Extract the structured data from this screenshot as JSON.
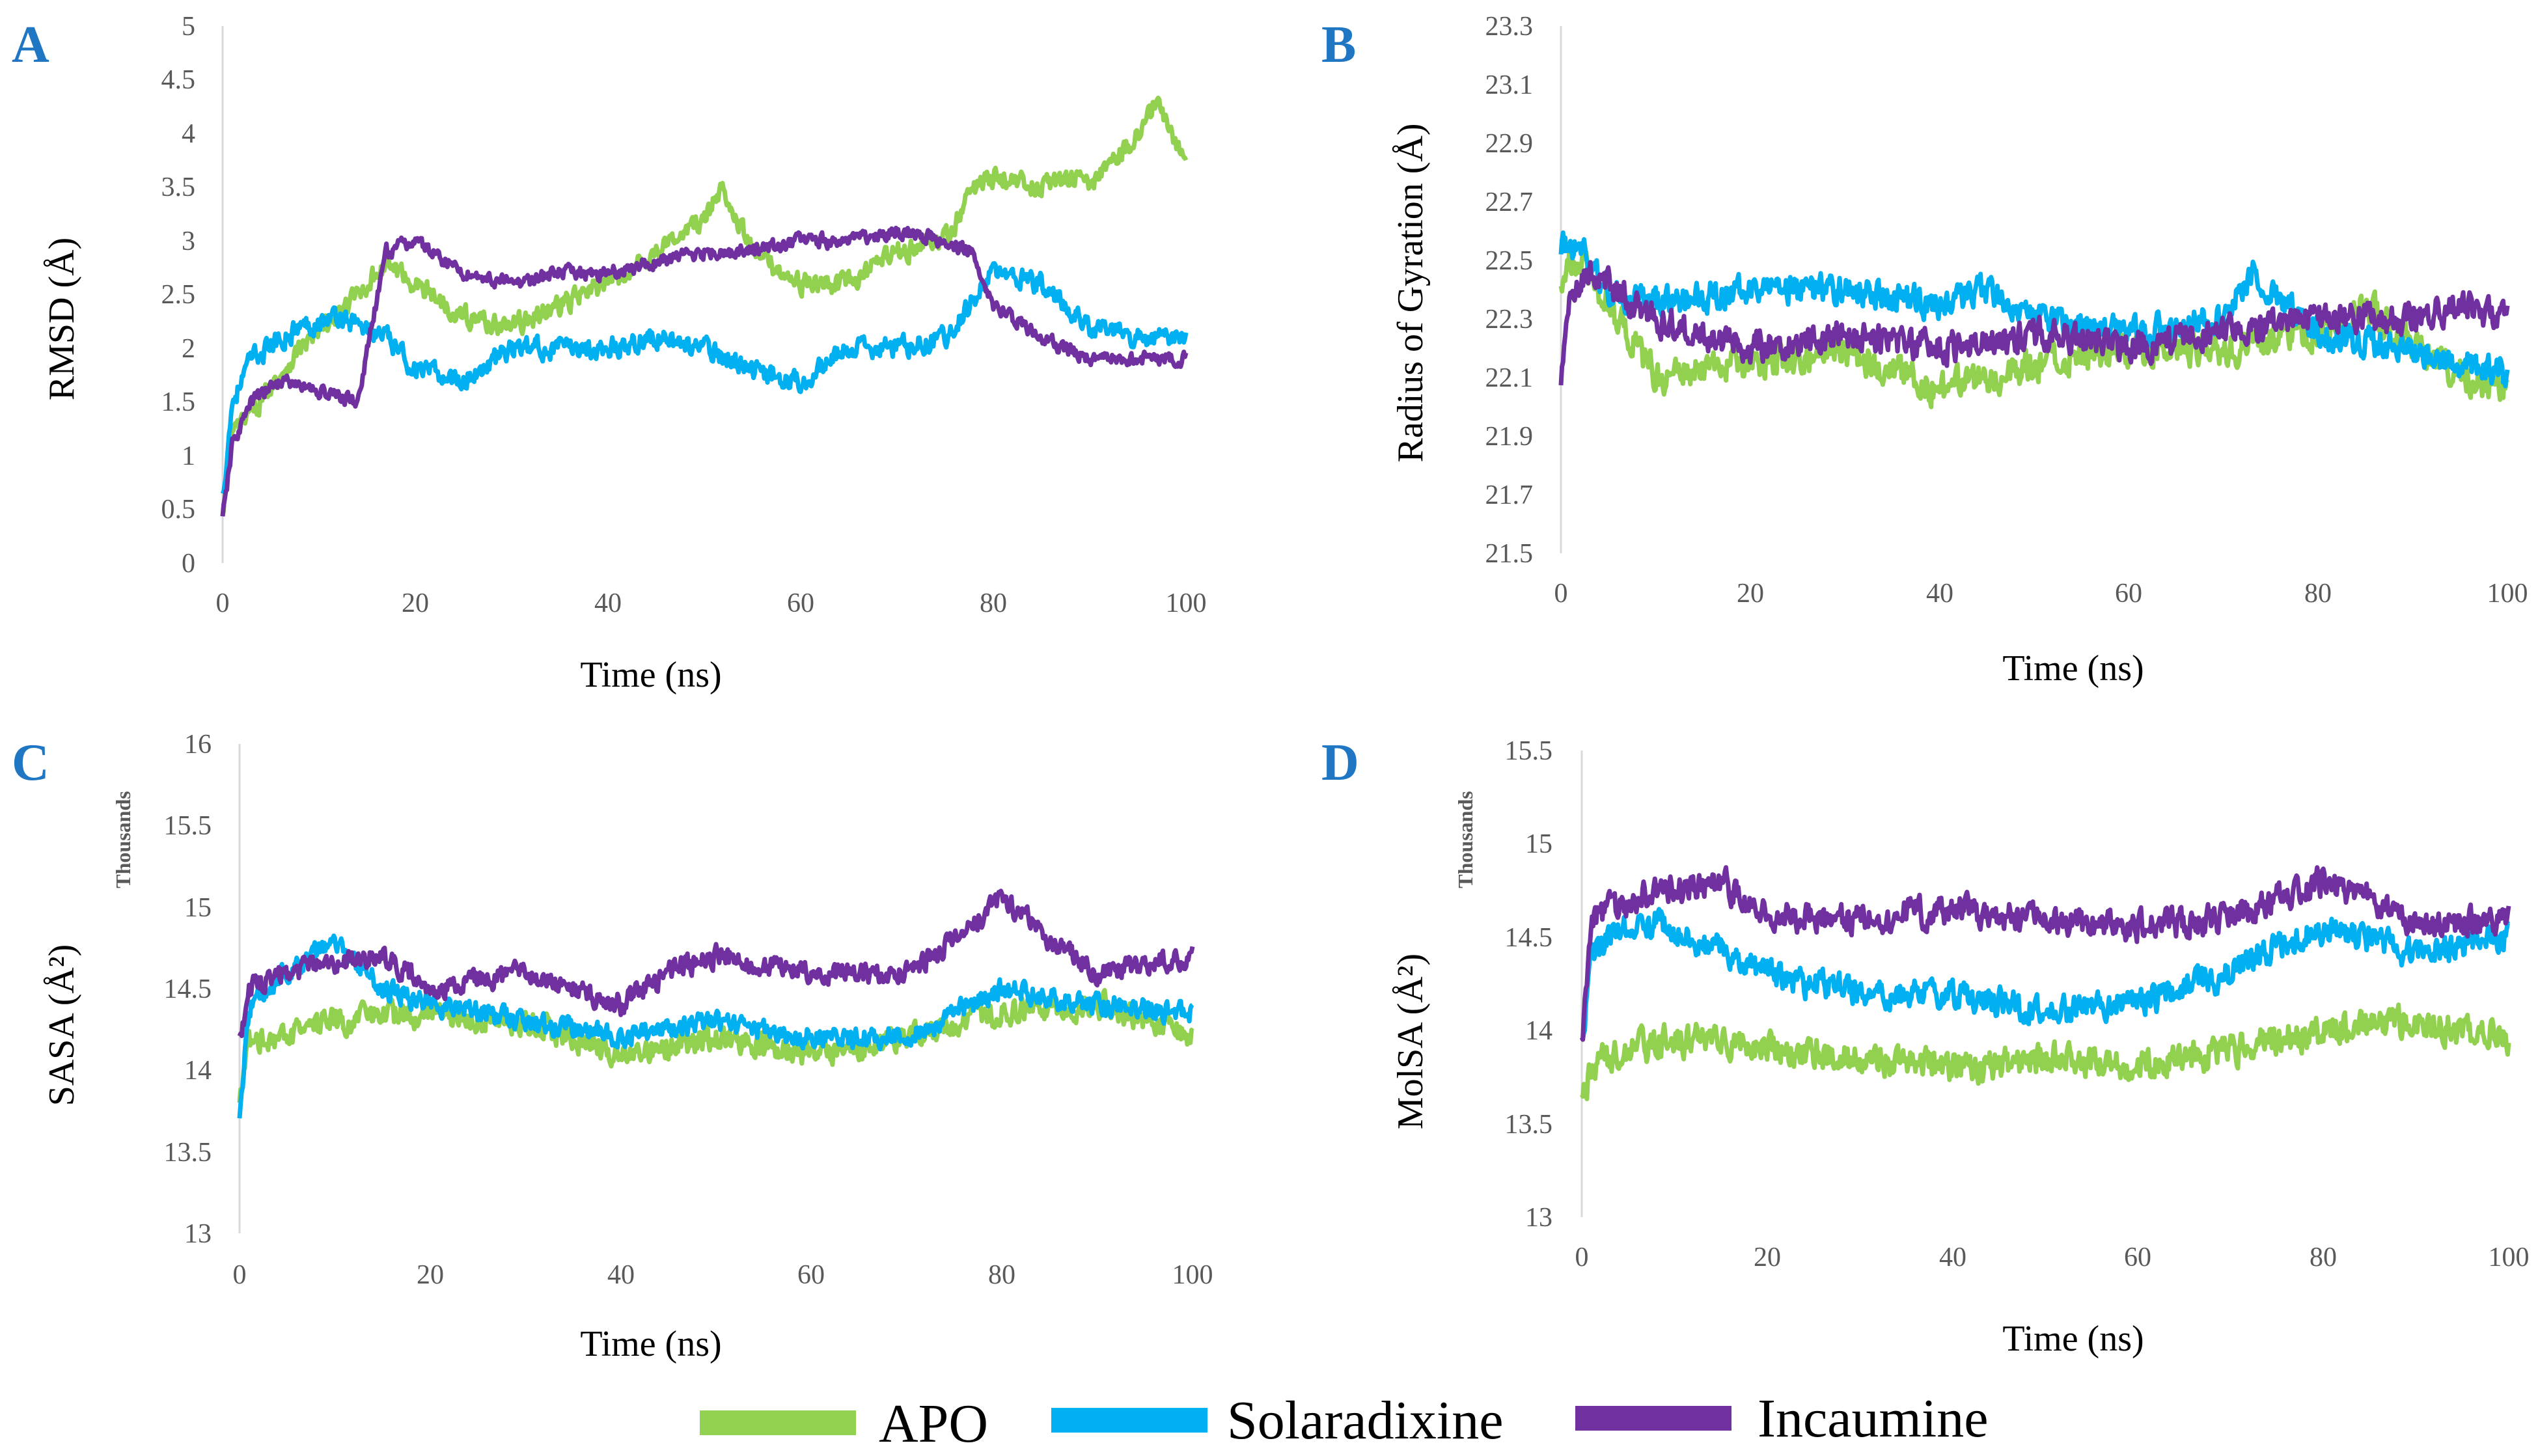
{
  "legend": {
    "items": [
      {
        "label": "APO",
        "color": "#92d050"
      },
      {
        "label": "Solaradixine",
        "color": "#00b0f0"
      },
      {
        "label": "Incaumine",
        "color": "#7030a0"
      }
    ]
  },
  "chart_data": [
    {
      "panel": "A",
      "type": "line",
      "xlabel": "Time (ns)",
      "ylabel": "RMSD (Å)",
      "units_label": "",
      "xlim": [
        0,
        100
      ],
      "ylim": [
        0,
        5
      ],
      "xticks": [
        "0",
        "20",
        "40",
        "60",
        "80",
        "100"
      ],
      "yticks": [
        "0",
        "0.5",
        "1",
        "1.5",
        "2",
        "2.5",
        "3",
        "3.5",
        "4",
        "4.5",
        "5"
      ],
      "series": [
        {
          "name": "APO",
          "color": "#92d050",
          "noise": 0.15,
          "x": [
            0,
            1,
            3,
            8,
            12,
            17,
            20,
            25,
            30,
            40,
            45,
            50,
            52,
            55,
            60,
            65,
            70,
            75,
            78,
            80,
            85,
            88,
            90,
            95,
            97,
            100
          ],
          "y": [
            0.4,
            1.2,
            1.4,
            2.0,
            2.3,
            2.8,
            2.6,
            2.3,
            2.2,
            2.6,
            2.9,
            3.2,
            3.5,
            2.9,
            2.6,
            2.6,
            2.9,
            3.0,
            3.5,
            3.6,
            3.5,
            3.6,
            3.5,
            4.0,
            4.3,
            3.7
          ]
        },
        {
          "name": "Solaradixine",
          "color": "#00b0f0",
          "noise": 0.15,
          "x": [
            0,
            1,
            3,
            8,
            12,
            17,
            20,
            25,
            30,
            40,
            45,
            50,
            55,
            60,
            65,
            70,
            75,
            80,
            85,
            90,
            95,
            100
          ],
          "y": [
            0.6,
            1.5,
            1.9,
            2.2,
            2.3,
            2.1,
            1.8,
            1.7,
            2.0,
            2.0,
            2.1,
            2.0,
            1.8,
            1.7,
            2.0,
            2.0,
            2.1,
            2.7,
            2.6,
            2.2,
            2.1,
            2.1
          ]
        },
        {
          "name": "Incaumine",
          "color": "#7030a0",
          "noise": 0.1,
          "x": [
            0,
            1,
            3,
            6,
            10,
            14,
            17,
            20,
            25,
            30,
            35,
            40,
            45,
            50,
            55,
            60,
            65,
            70,
            75,
            78,
            80,
            85,
            90,
            95,
            100
          ],
          "y": [
            0.4,
            1.1,
            1.5,
            1.7,
            1.6,
            1.5,
            2.9,
            3.0,
            2.7,
            2.6,
            2.7,
            2.7,
            2.8,
            2.9,
            2.9,
            3.0,
            3.0,
            3.1,
            3.0,
            2.9,
            2.4,
            2.1,
            1.9,
            1.9,
            1.9
          ]
        }
      ]
    },
    {
      "panel": "B",
      "type": "line",
      "xlabel": "Time (ns)",
      "ylabel": "Radius of Gyration (Å)",
      "units_label": "",
      "xlim": [
        0,
        100
      ],
      "ylim": [
        21.5,
        23.3
      ],
      "xticks": [
        "0",
        "20",
        "40",
        "60",
        "80",
        "100"
      ],
      "yticks": [
        "21.5",
        "21.7",
        "21.9",
        "22.1",
        "22.3",
        "22.5",
        "22.7",
        "22.9",
        "23.1",
        "23.3"
      ],
      "series": [
        {
          "name": "APO",
          "color": "#92d050",
          "noise": 0.09,
          "x": [
            0,
            2,
            5,
            10,
            20,
            30,
            40,
            50,
            60,
            70,
            80,
            85,
            90,
            100
          ],
          "y": [
            22.45,
            22.5,
            22.35,
            22.1,
            22.15,
            22.2,
            22.05,
            22.15,
            22.2,
            22.2,
            22.25,
            22.35,
            22.2,
            22.05
          ]
        },
        {
          "name": "Solaradixine",
          "color": "#00b0f0",
          "noise": 0.08,
          "x": [
            0,
            2,
            5,
            10,
            20,
            30,
            40,
            45,
            50,
            60,
            70,
            73,
            80,
            90,
            100
          ],
          "y": [
            22.55,
            22.55,
            22.4,
            22.35,
            22.4,
            22.4,
            22.35,
            22.4,
            22.3,
            22.25,
            22.3,
            22.45,
            22.25,
            22.2,
            22.1
          ]
        },
        {
          "name": "Incaumine",
          "color": "#7030a0",
          "noise": 0.08,
          "x": [
            0,
            1,
            3,
            6,
            10,
            20,
            30,
            40,
            50,
            60,
            70,
            80,
            90,
            95,
            100
          ],
          "y": [
            22.1,
            22.4,
            22.45,
            22.4,
            22.3,
            22.2,
            22.25,
            22.2,
            22.25,
            22.2,
            22.25,
            22.3,
            22.3,
            22.35,
            22.3
          ]
        }
      ]
    },
    {
      "panel": "C",
      "type": "line",
      "xlabel": "Time (ns)",
      "ylabel": "SASA (Å²)",
      "units_label": "Thousands",
      "xlim": [
        0,
        100
      ],
      "ylim": [
        13,
        16
      ],
      "xticks": [
        "0",
        "20",
        "40",
        "60",
        "80",
        "100"
      ],
      "yticks": [
        "13",
        "13.5",
        "14",
        "14.5",
        "15",
        "15.5",
        "16"
      ],
      "series": [
        {
          "name": "APO",
          "color": "#92d050",
          "noise": 0.12,
          "x": [
            0,
            1,
            5,
            10,
            20,
            30,
            40,
            50,
            60,
            70,
            80,
            90,
            100
          ],
          "y": [
            13.8,
            14.2,
            14.2,
            14.3,
            14.35,
            14.3,
            14.1,
            14.2,
            14.1,
            14.2,
            14.35,
            14.4,
            14.2
          ]
        },
        {
          "name": "Solaradixine",
          "color": "#00b0f0",
          "noise": 0.1,
          "x": [
            0,
            1,
            5,
            10,
            15,
            20,
            30,
            40,
            50,
            60,
            70,
            80,
            90,
            100
          ],
          "y": [
            13.7,
            14.4,
            14.6,
            14.8,
            14.5,
            14.4,
            14.3,
            14.2,
            14.3,
            14.2,
            14.2,
            14.5,
            14.4,
            14.35
          ]
        },
        {
          "name": "Incaumine",
          "color": "#7030a0",
          "noise": 0.1,
          "x": [
            0,
            1,
            5,
            10,
            15,
            20,
            25,
            30,
            40,
            45,
            50,
            60,
            70,
            75,
            80,
            85,
            90,
            100
          ],
          "y": [
            14.2,
            14.5,
            14.6,
            14.65,
            14.7,
            14.5,
            14.55,
            14.6,
            14.4,
            14.6,
            14.7,
            14.6,
            14.6,
            14.8,
            15.05,
            14.8,
            14.6,
            14.7
          ]
        }
      ]
    },
    {
      "panel": "D",
      "type": "line",
      "xlabel": "Time (ns)",
      "ylabel": "MolSA (Å²)",
      "units_label": "Thousands",
      "xlim": [
        0,
        100
      ],
      "ylim": [
        13,
        15.5
      ],
      "xticks": [
        "0",
        "20",
        "40",
        "60",
        "80",
        "100"
      ],
      "yticks": [
        "13",
        "13.5",
        "14",
        "14.5",
        "15",
        "15.5"
      ],
      "series": [
        {
          "name": "APO",
          "color": "#92d050",
          "noise": 0.13,
          "x": [
            0,
            1,
            5,
            10,
            20,
            30,
            40,
            50,
            60,
            70,
            80,
            90,
            100
          ],
          "y": [
            13.6,
            13.8,
            13.9,
            13.95,
            13.9,
            13.85,
            13.8,
            13.85,
            13.8,
            13.9,
            14.0,
            14.05,
            13.95
          ]
        },
        {
          "name": "Solaradixine",
          "color": "#00b0f0",
          "noise": 0.12,
          "x": [
            0,
            1,
            5,
            10,
            20,
            30,
            40,
            50,
            60,
            70,
            75,
            80,
            85,
            90,
            100
          ],
          "y": [
            13.9,
            14.4,
            14.6,
            14.55,
            14.3,
            14.2,
            14.2,
            14.1,
            14.15,
            14.3,
            14.45,
            14.55,
            14.5,
            14.4,
            14.5
          ]
        },
        {
          "name": "Incaumine",
          "color": "#7030a0",
          "noise": 0.12,
          "x": [
            0,
            1,
            5,
            10,
            15,
            20,
            30,
            40,
            50,
            60,
            70,
            75,
            80,
            85,
            90,
            100
          ],
          "y": [
            13.9,
            14.6,
            14.7,
            14.75,
            14.8,
            14.6,
            14.6,
            14.65,
            14.6,
            14.55,
            14.6,
            14.7,
            14.8,
            14.7,
            14.55,
            14.6
          ]
        }
      ]
    }
  ]
}
